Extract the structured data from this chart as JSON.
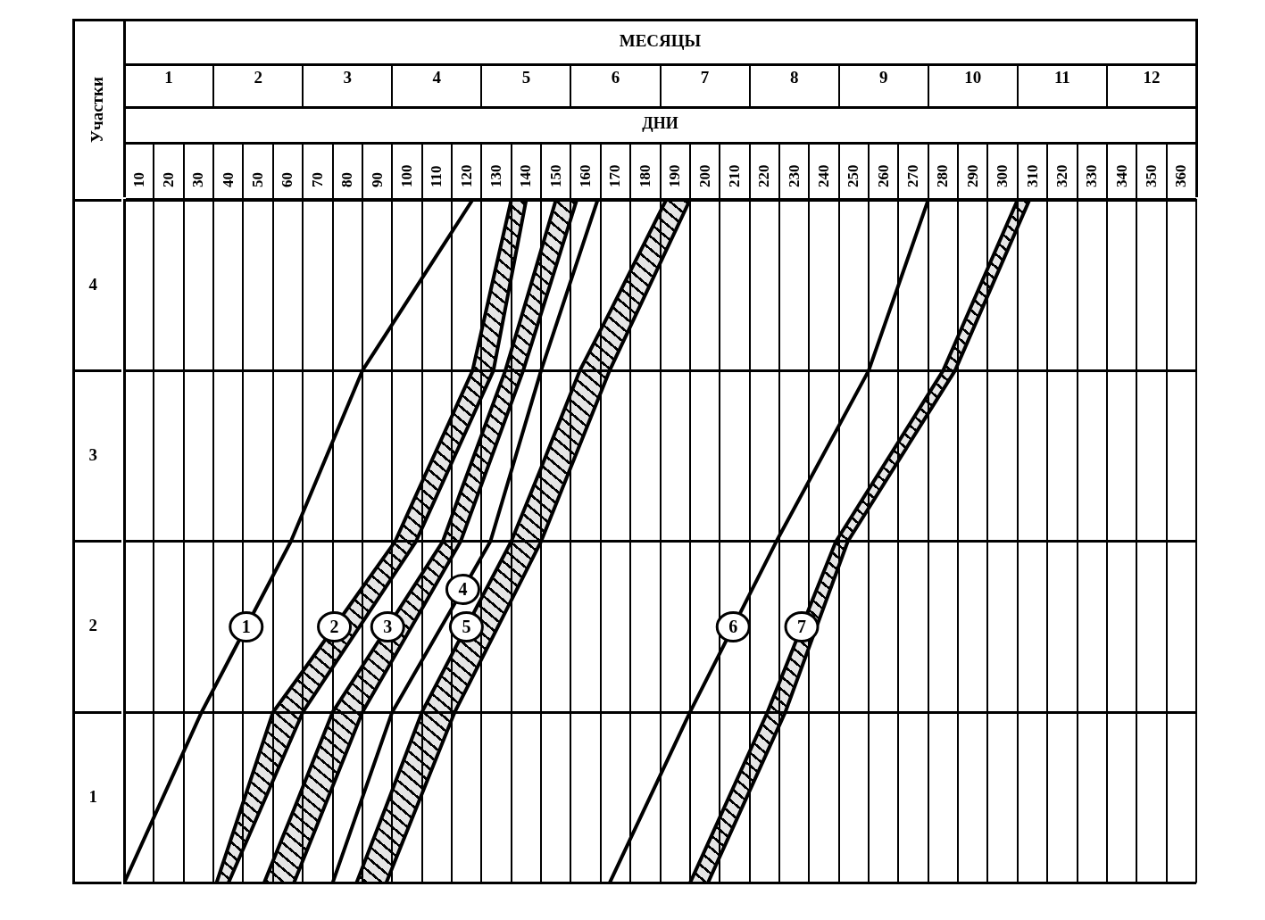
{
  "chart_data": {
    "type": "line",
    "xlabel": "ДНИ",
    "x2label": "МЕСЯЦЫ",
    "ylabel": "Участки",
    "xlim": [
      5,
      365
    ],
    "xticks": [
      10,
      20,
      30,
      40,
      50,
      60,
      70,
      80,
      90,
      100,
      110,
      120,
      130,
      140,
      150,
      160,
      170,
      180,
      190,
      200,
      210,
      220,
      230,
      240,
      250,
      260,
      270,
      280,
      290,
      300,
      310,
      320,
      330,
      340,
      350,
      360
    ],
    "x2lim": [
      0.5,
      12.5
    ],
    "x2ticks": [
      1,
      2,
      3,
      4,
      5,
      6,
      7,
      8,
      9,
      10,
      11,
      12
    ],
    "ylim": [
      0.5,
      4.5
    ],
    "yticks": [
      1,
      2,
      3,
      4
    ],
    "grid": true,
    "series": [
      {
        "name": "1",
        "color": "#000000",
        "x": [
          5,
          31,
          61,
          85,
          122
        ],
        "values": [
          0.5,
          1.5,
          2.5,
          3.5,
          4.5
        ]
      },
      {
        "name": "2",
        "color": "#000000",
        "x": [
          36,
          40,
          55,
          65,
          96,
          103,
          122,
          129,
          135,
          140
        ],
        "values": [
          0.5,
          0.71,
          1.5,
          1.74,
          2.5,
          2.77,
          3.5,
          4.04,
          4.5,
          null
        ],
        "lower": [
          0.5,
          0.5,
          1.1,
          1.5,
          2.32,
          2.5,
          3.23,
          3.5,
          4.05,
          4.5
        ],
        "upper": [
          0.5,
          0.71,
          1.5,
          1.74,
          2.5,
          2.77,
          3.5,
          4.04,
          4.5,
          4.5
        ]
      },
      {
        "color": "#000000",
        "x": [
          40,
          65,
          103,
          129,
          140
        ],
        "values": [
          0.5,
          1.5,
          2.5,
          3.5,
          4.5
        ]
      },
      {
        "name": "3",
        "color": "#000000",
        "x": [
          52,
          62,
          75,
          85,
          112,
          118,
          133,
          139,
          150,
          157
        ],
        "values": [
          0.5,
          0.93,
          1.5,
          1.77,
          2.5,
          2.79,
          3.5,
          3.85,
          4.5,
          null
        ],
        "lower": [
          0.5,
          0.5,
          1.07,
          1.5,
          2.32,
          2.5,
          3.21,
          3.5,
          4.11,
          4.5
        ],
        "upper": [
          0.5,
          0.93,
          1.5,
          1.77,
          2.5,
          2.79,
          3.5,
          3.85,
          4.5,
          4.5
        ]
      },
      {
        "color": "#000000",
        "x": [
          62,
          85,
          118,
          139,
          157
        ],
        "values": [
          0.5,
          1.5,
          2.5,
          3.5,
          4.5
        ]
      },
      {
        "name": "4",
        "color": "#000000",
        "x": [
          75,
          95,
          128,
          145,
          164
        ],
        "values": [
          0.5,
          1.5,
          2.5,
          3.5,
          4.5
        ]
      },
      {
        "name": "5",
        "color": "#000000",
        "x": [
          83,
          93,
          105,
          116,
          135,
          145,
          158,
          168,
          187,
          195
        ],
        "values": [
          0.5,
          0.95,
          1.5,
          1.87,
          2.5,
          2.93,
          3.5,
          3.84,
          4.5,
          null
        ],
        "lower": [
          0.5,
          0.5,
          1.02,
          1.5,
          2.16,
          2.5,
          3.07,
          3.5,
          4.2,
          4.5
        ],
        "upper": [
          0.5,
          0.95,
          1.5,
          1.87,
          2.5,
          2.93,
          3.5,
          3.84,
          4.5,
          4.5
        ]
      },
      {
        "color": "#000000",
        "x": [
          93,
          116,
          145,
          168,
          195
        ],
        "values": [
          0.5,
          1.5,
          2.5,
          3.5,
          4.5
        ]
      },
      {
        "name": "6",
        "color": "#000000",
        "x": [
          168,
          195,
          224,
          255,
          275
        ],
        "values": [
          0.5,
          1.5,
          2.5,
          3.5,
          4.5
        ]
      },
      {
        "name": "7",
        "color": "#000000",
        "x": [
          195,
          201,
          221,
          227,
          244,
          248,
          280,
          284,
          305,
          309
        ],
        "values": [
          0.5,
          0.73,
          1.5,
          1.76,
          2.5,
          2.61,
          3.5,
          3.66,
          4.5,
          null
        ],
        "lower": [
          0.5,
          0.5,
          1.27,
          1.5,
          2.31,
          2.5,
          3.39,
          3.5,
          4.34,
          4.5
        ],
        "upper": [
          0.5,
          0.73,
          1.5,
          1.76,
          2.5,
          2.61,
          3.5,
          3.66,
          4.5,
          4.5
        ]
      },
      {
        "color": "#000000",
        "x": [
          201,
          227,
          248,
          284,
          309
        ],
        "values": [
          0.5,
          1.5,
          2.5,
          3.5,
          4.5
        ]
      }
    ]
  }
}
